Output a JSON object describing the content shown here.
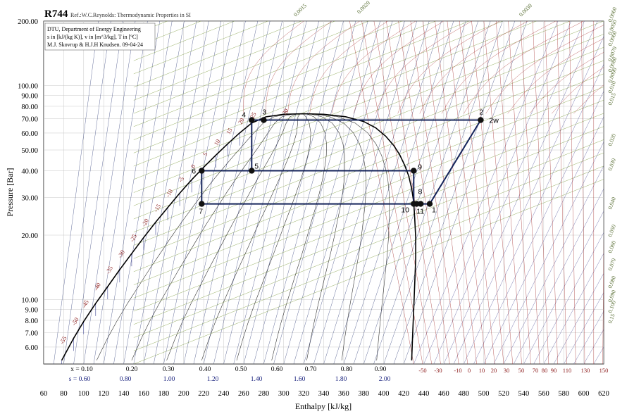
{
  "chart_data": {
    "type": "line",
    "title": "R744",
    "subtitle": "Ref.:W.C.Reynolds: Thermodynamic Properties in SI",
    "info_lines": [
      "DTU, Department of Energy Engineering",
      "s in [kJ/(kg K)], v in [m^3/kg], T in [ºC]",
      "M.J. Skovrup & H.J.H Knudsen. 09-04-24"
    ],
    "xlabel": "Enthalpy [kJ/kg]",
    "ylabel": "Pressure [Bar]",
    "xlim": [
      60,
      620
    ],
    "ylim": [
      5.0,
      200
    ],
    "yscale": "log",
    "x_ticks": [
      60,
      80,
      100,
      120,
      140,
      160,
      180,
      200,
      220,
      240,
      260,
      280,
      300,
      320,
      340,
      360,
      380,
      400,
      420,
      440,
      460,
      480,
      500,
      520,
      540,
      560,
      580,
      600,
      620
    ],
    "y_ticks": [
      6.0,
      7.0,
      8.0,
      9.0,
      10.0,
      20.0,
      30.0,
      40.0,
      50.0,
      60.0,
      70.0,
      80.0,
      90.0,
      100.0,
      200.0
    ],
    "y_tick_labels": [
      "6.00",
      "7.00",
      "8.00",
      "9.00",
      "10.00",
      "20.00",
      "30.00",
      "40.00",
      "50.00",
      "60.00",
      "70.00",
      "80.00",
      "90.00",
      "100.00",
      "200.00"
    ],
    "quality_labels": [
      "x = 0.10",
      "0.20",
      "0.30",
      "0.40",
      "0.50",
      "0.60",
      "0.70",
      "0.80",
      "0.90"
    ],
    "entropy_labels": [
      "s = 0.60",
      "0.80",
      "1.00",
      "1.20",
      "1.40",
      "1.60",
      "1.80",
      "2.00"
    ],
    "temp_bottom_labels": [
      "-50",
      "-30",
      "-10",
      "0",
      "10",
      "20",
      "30",
      "50",
      "70",
      "80",
      "90",
      "110",
      "130",
      "150"
    ],
    "sat_temp_labels": [
      "-55",
      "-50",
      "-45",
      "-40",
      "-35",
      "-30",
      "-25",
      "-20",
      "-15",
      "-10",
      "-5",
      "0",
      "5",
      "10",
      "15",
      "20",
      "25",
      "30"
    ],
    "volume_labels_right": [
      "0.0060",
      "0.0050",
      "0.0060",
      "0.0070",
      "0.0080",
      "0.0090",
      "0.010",
      "0.015",
      "0.020",
      "0.030",
      "0.040",
      "0.050",
      "0.060",
      "0.070",
      "0.080",
      "0.090",
      "0.100",
      "0.15"
    ],
    "volume_labels_top": [
      "0.0015",
      "0.0020",
      "0.0030"
    ],
    "series": [
      {
        "points": [
          {
            "label": "1",
            "h": 446,
            "p": 28.0
          },
          {
            "label": "2",
            "h": 497,
            "p": 69.0
          },
          {
            "label": "2w",
            "h": 497,
            "p": 69.0
          },
          {
            "label": "3",
            "h": 280,
            "p": 69.0
          },
          {
            "label": "4",
            "h": 268,
            "p": 69.0
          },
          {
            "label": "5",
            "h": 268,
            "p": 40.0
          },
          {
            "label": "6",
            "h": 218,
            "p": 40.0
          },
          {
            "label": "7",
            "h": 218,
            "p": 28.0
          },
          {
            "label": "8",
            "h": 433,
            "p": 28.0
          },
          {
            "label": "9",
            "h": 430,
            "p": 40.0
          },
          {
            "label": "10",
            "h": 430,
            "p": 28.0
          },
          {
            "label": "11",
            "h": 437,
            "p": 28.0
          }
        ],
        "path": [
          [
            218,
            28.0
          ],
          [
            430,
            28.0
          ],
          [
            437,
            28.0
          ],
          [
            446,
            28.0
          ],
          [
            497,
            69.0
          ],
          [
            268,
            69.0
          ],
          [
            268,
            40.0
          ],
          [
            218,
            40.0
          ],
          [
            218,
            28.0
          ]
        ],
        "path2": [
          [
            268,
            40.0
          ],
          [
            430,
            40.0
          ],
          [
            430,
            28.0
          ]
        ]
      }
    ],
    "grid": true
  }
}
